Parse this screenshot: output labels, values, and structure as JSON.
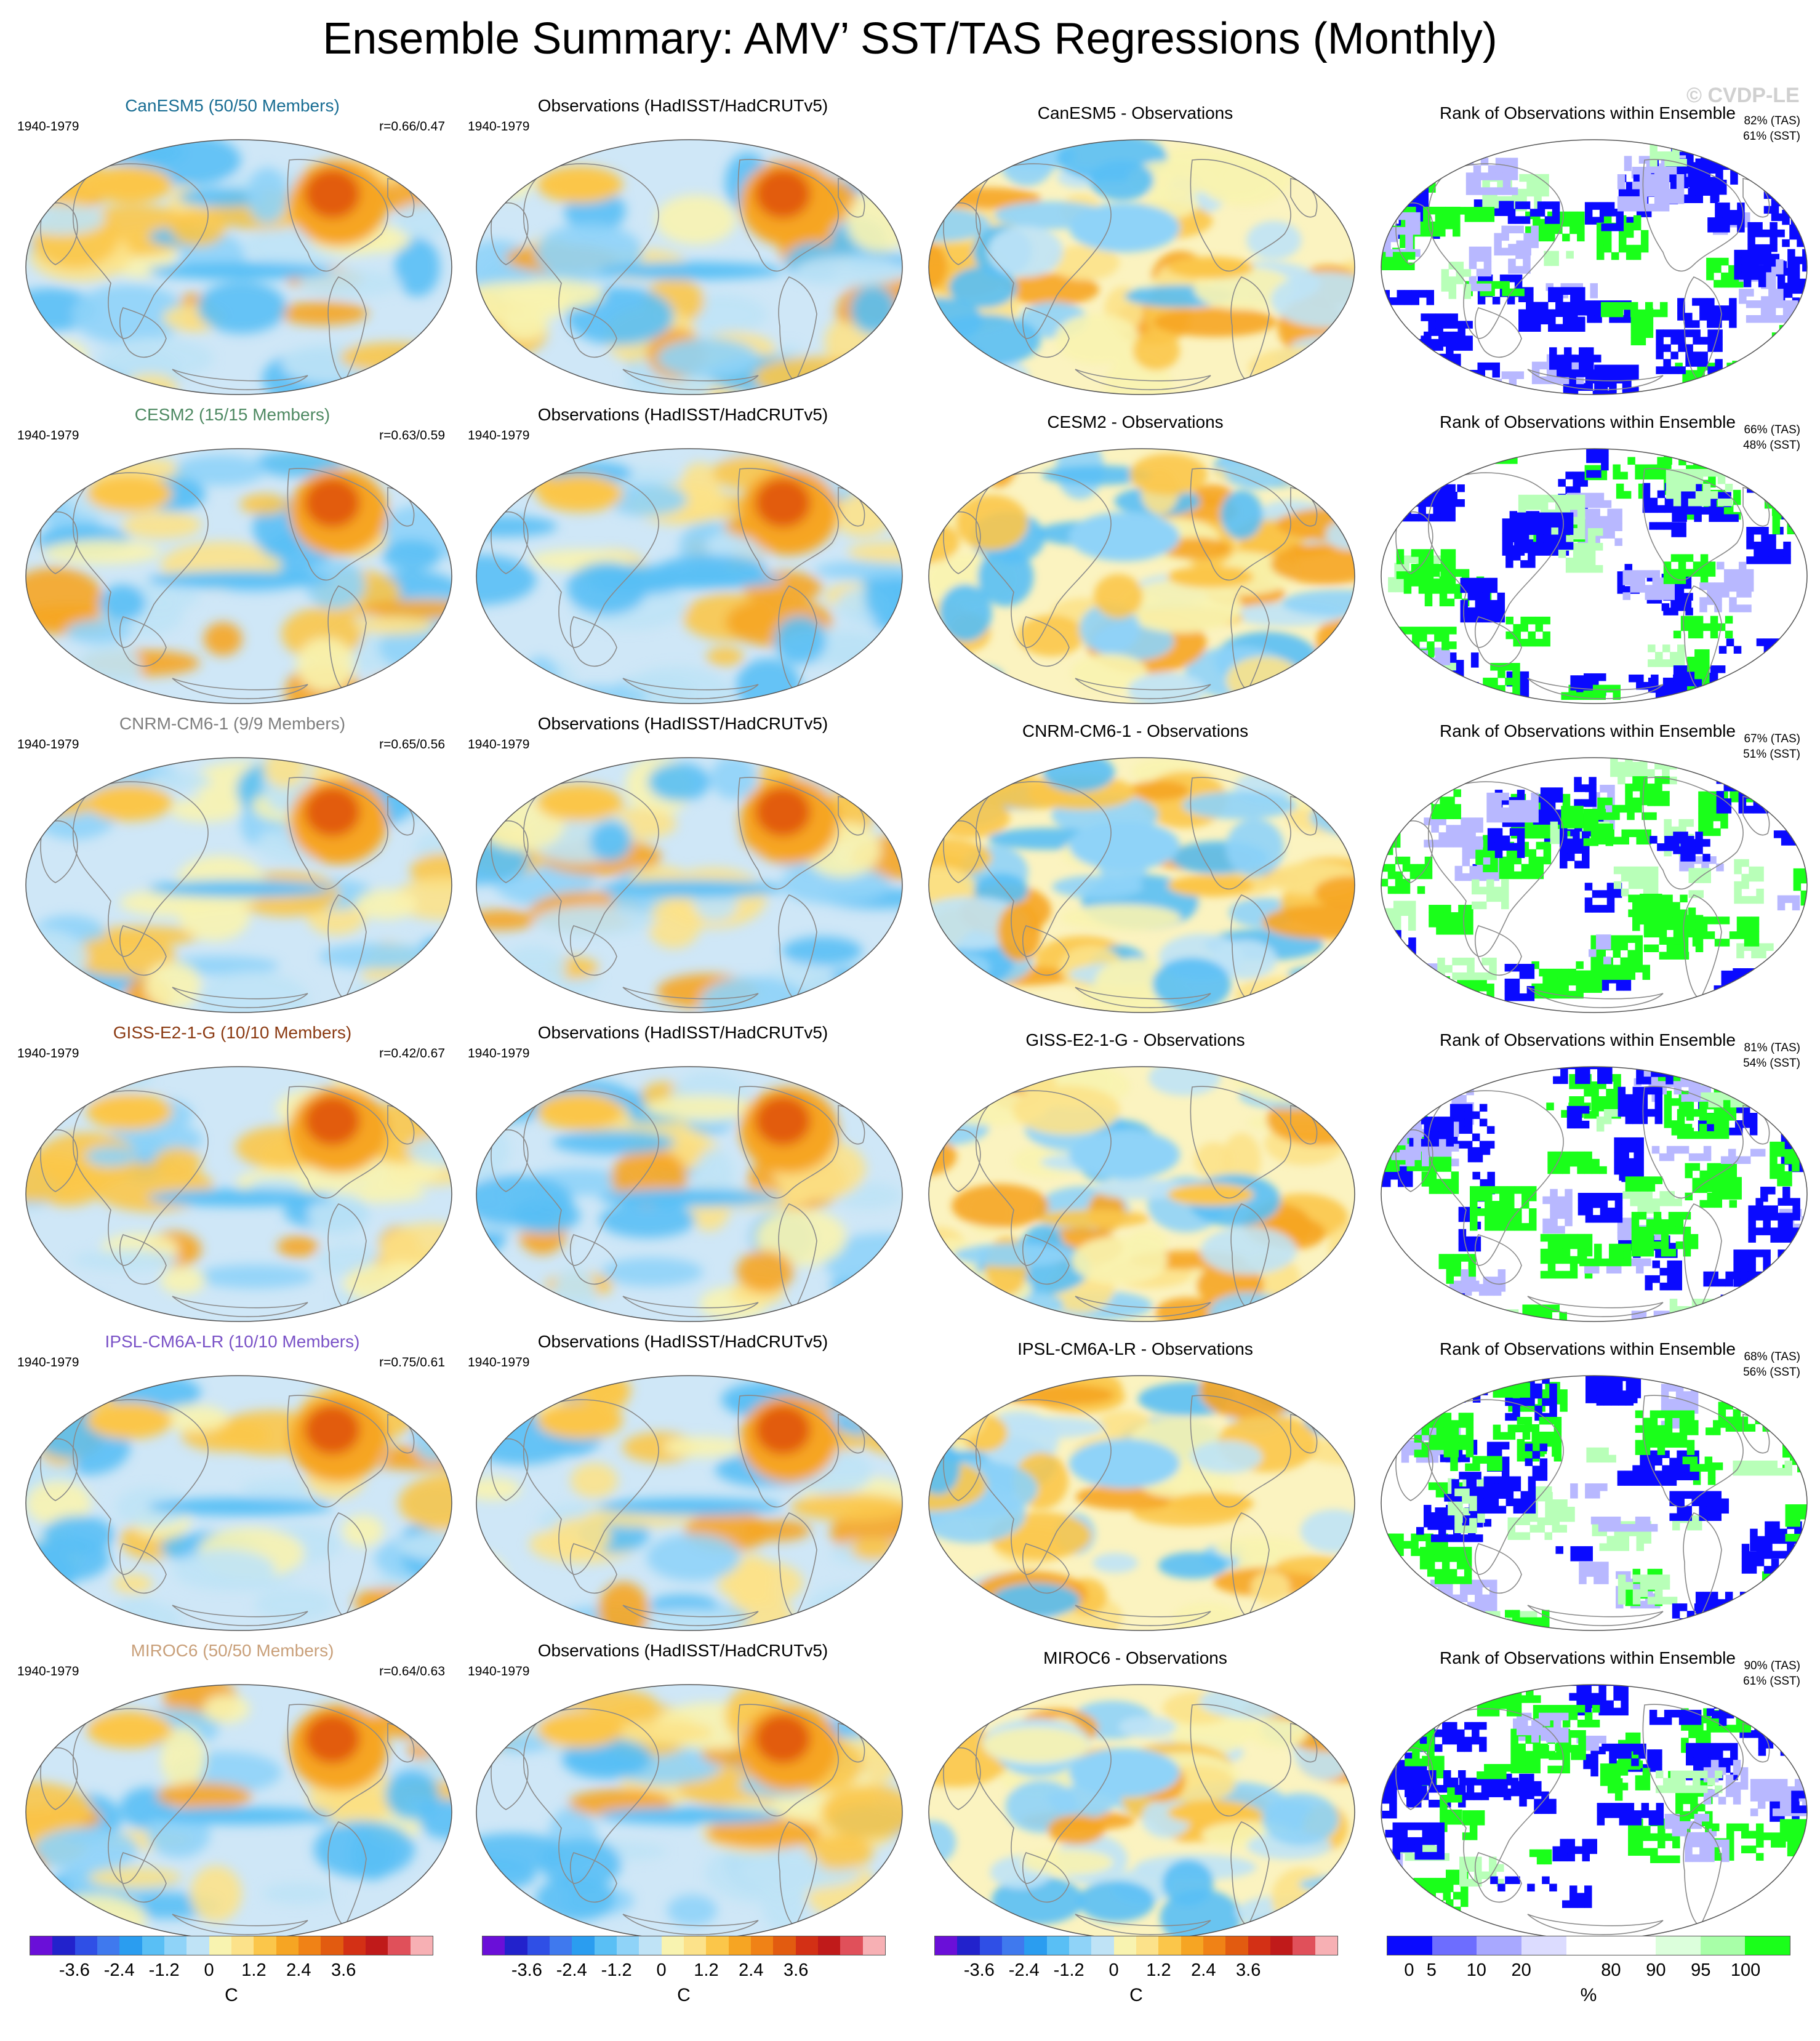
{
  "title": "Ensemble Summary: AMV’ SST/TAS Regressions (Monthly)",
  "watermark": "© CVDP-LE",
  "obs_title": "Observations (HadISST/HadCRUTv5)",
  "rank_title": "Rank of Observations within Ensemble",
  "period": "1940-1979",
  "rows": [
    {
      "model": "CanESM5",
      "ens_title": "CanESM5 (50/50 Members)",
      "title_color": "#1a6e94",
      "r": "r=0.66/0.47",
      "diff_title": "CanESM5 - Observations",
      "rank_tas": "82% (TAS)",
      "rank_sst": "61% (SST)"
    },
    {
      "model": "CESM2",
      "ens_title": "CESM2 (15/15 Members)",
      "title_color": "#4f8a63",
      "r": "r=0.63/0.59",
      "diff_title": "CESM2 - Observations",
      "rank_tas": "66% (TAS)",
      "rank_sst": "48% (SST)"
    },
    {
      "model": "CNRM-CM6-1",
      "ens_title": "CNRM-CM6-1 (9/9 Members)",
      "title_color": "#7f7f7f",
      "r": "r=0.65/0.56",
      "diff_title": "CNRM-CM6-1 - Observations",
      "rank_tas": "67% (TAS)",
      "rank_sst": "51% (SST)"
    },
    {
      "model": "GISS-E2-1-G",
      "ens_title": "GISS-E2-1-G (10/10 Members)",
      "title_color": "#8b3a12",
      "r": "r=0.42/0.67",
      "diff_title": "GISS-E2-1-G - Observations",
      "rank_tas": "81% (TAS)",
      "rank_sst": "54% (SST)"
    },
    {
      "model": "IPSL-CM6A-LR",
      "ens_title": "IPSL-CM6A-LR (10/10 Members)",
      "title_color": "#7a52c7",
      "r": "r=0.75/0.61",
      "diff_title": "IPSL-CM6A-LR - Observations",
      "rank_tas": "68% (TAS)",
      "rank_sst": "56% (SST)"
    },
    {
      "model": "MIROC6",
      "ens_title": "MIROC6 (50/50 Members)",
      "title_color": "#c9a07a",
      "r": "r=0.64/0.63",
      "diff_title": "MIROC6 - Observations",
      "rank_tas": "90% (TAS)",
      "rank_sst": "61% (SST)"
    }
  ],
  "colorbars": [
    {
      "type": "temp",
      "colors": [
        "#6a0fd8",
        "#2222cc",
        "#2f4fe6",
        "#3f79ee",
        "#2a9df0",
        "#59bff5",
        "#8fd3f8",
        "#bfe3f6",
        "#f8f3b0",
        "#fce28a",
        "#fbc64a",
        "#f6a523",
        "#f08216",
        "#e25b10",
        "#d33015",
        "#c01a1a",
        "#e0505a",
        "#f7b0b4"
      ],
      "ticks": [
        "-3.6",
        "-2.4",
        "-1.2",
        "0",
        "1.2",
        "2.4",
        "3.6"
      ],
      "tick_boundaries": [
        2,
        4,
        6,
        8,
        10,
        12,
        14
      ],
      "unit": "C"
    },
    {
      "type": "temp",
      "colors": [
        "#6a0fd8",
        "#2222cc",
        "#2f4fe6",
        "#3f79ee",
        "#2a9df0",
        "#59bff5",
        "#8fd3f8",
        "#bfe3f6",
        "#f8f3b0",
        "#fce28a",
        "#fbc64a",
        "#f6a523",
        "#f08216",
        "#e25b10",
        "#d33015",
        "#c01a1a",
        "#e0505a",
        "#f7b0b4"
      ],
      "ticks": [
        "-3.6",
        "-2.4",
        "-1.2",
        "0",
        "1.2",
        "2.4",
        "3.6"
      ],
      "tick_boundaries": [
        2,
        4,
        6,
        8,
        10,
        12,
        14
      ],
      "unit": "C"
    },
    {
      "type": "temp",
      "colors": [
        "#6a0fd8",
        "#2222cc",
        "#2f4fe6",
        "#3f79ee",
        "#2a9df0",
        "#59bff5",
        "#8fd3f8",
        "#bfe3f6",
        "#f8f3b0",
        "#fce28a",
        "#fbc64a",
        "#f6a523",
        "#f08216",
        "#e25b10",
        "#d33015",
        "#c01a1a",
        "#e0505a",
        "#f7b0b4"
      ],
      "ticks": [
        "-3.6",
        "-2.4",
        "-1.2",
        "0",
        "1.2",
        "2.4",
        "3.6"
      ],
      "tick_boundaries": [
        2,
        4,
        6,
        8,
        10,
        12,
        14
      ],
      "unit": "C"
    },
    {
      "type": "rank",
      "colors": [
        "#0a0aff",
        "#6d6dff",
        "#a8a8ff",
        "#dcdcff",
        "#ffffff",
        "#ffffff",
        "#dcffdc",
        "#a8ffa8",
        "#1aff1a"
      ],
      "ticks": [
        "0",
        "5",
        "10",
        "20",
        "80",
        "90",
        "95",
        "100"
      ],
      "tick_boundaries": [
        0.5,
        1,
        2,
        3,
        5,
        6,
        7,
        8
      ],
      "unit": "%"
    }
  ]
}
